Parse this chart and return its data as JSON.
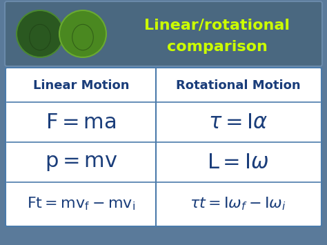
{
  "title_line1": "Linear/rotational",
  "title_line2": "comparison",
  "title_color": "#ccff00",
  "outer_bg": "#5a7a9a",
  "header_bg": "#4a6880",
  "header_border": "#6a8aaa",
  "table_bg": "#ffffff",
  "table_border": "#4a7aaa",
  "col_divider": "#4a7aaa",
  "header_text_color": "#1a3d7a",
  "formula_color": "#1a3d7a",
  "col1_header": "Linear Motion",
  "col2_header": "Rotational Motion",
  "header_fontsize": 13,
  "formula_fontsize_large": 22,
  "formula_fontsize_small": 16,
  "fig_w": 4.74,
  "fig_h": 3.55,
  "dpi": 100
}
